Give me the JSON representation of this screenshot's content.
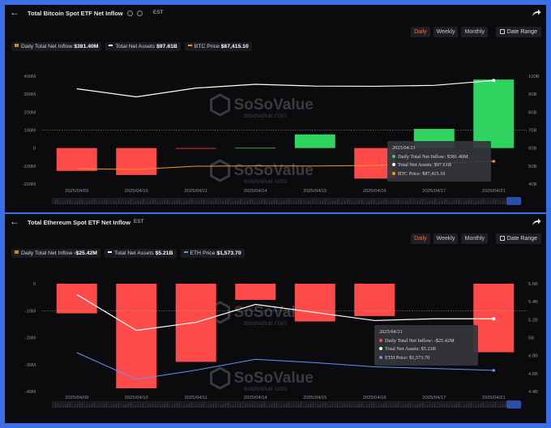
{
  "btc": {
    "title": "Total Bitcoin Spot ETF Net Inflow",
    "timezone": "EST",
    "timeframes": [
      "Daily",
      "Weekly",
      "Monthly"
    ],
    "active_timeframe": "Daily",
    "date_range_label": "Date Range",
    "legend": [
      {
        "label": "Daily Total Net Inflow",
        "value": "$381.40M",
        "color": "#f5a623"
      },
      {
        "label": "Total Net Assets",
        "value": "$97.61B",
        "color": "#ffffff"
      },
      {
        "label": "BTC Price",
        "value": "$87,415.10",
        "color": "#f7931a"
      }
    ],
    "tooltip": {
      "date": "2025/04/21",
      "lines": [
        {
          "text": "Daily Total Net Inflow: $381.40M",
          "color": "#2fd45e"
        },
        {
          "text": "Total Net Assets: $97.61B",
          "color": "#ffffff"
        },
        {
          "text": "BTC Price: $87,415.10",
          "color": "#f7931a"
        }
      ]
    },
    "watermark": {
      "brand": "SoSoValue",
      "url": "sosovalue.com"
    }
  },
  "eth": {
    "title": "Total Ethereum Spot ETF Net Inflow",
    "timezone": "EST",
    "timeframes": [
      "Daily",
      "Weekly",
      "Monthly"
    ],
    "active_timeframe": "Daily",
    "date_range_label": "Date Range",
    "legend": [
      {
        "label": "Daily Total Net Inflow",
        "value": "-$25.42M",
        "color": "#f5a623"
      },
      {
        "label": "Total Net Assets",
        "value": "$5.21B",
        "color": "#ffffff"
      },
      {
        "label": "ETH Price",
        "value": "$1,573.70",
        "color": "#6b8cff"
      }
    ],
    "tooltip": {
      "date": "2025/04/21",
      "lines": [
        {
          "text": "Daily Total Net Inflow: -$25.42M",
          "color": "#ff4a4a"
        },
        {
          "text": "Total Net Assets: $5.21B",
          "color": "#ffffff"
        },
        {
          "text": "ETH Price: $1,573.70",
          "color": "#6b8cff"
        }
      ]
    },
    "watermark": {
      "brand": "SoSoValue",
      "url": "sosovalue.com"
    }
  },
  "chart_data": [
    {
      "type": "bar",
      "title": "Total Bitcoin Spot ETF Net Inflow",
      "categories": [
        "2025/04/09",
        "2025/04/10",
        "2025/04/11",
        "2025/04/14",
        "2025/04/15",
        "2025/04/16",
        "2025/04/17",
        "2025/04/21"
      ],
      "series": [
        {
          "name": "Daily Total Net Inflow",
          "type": "bar",
          "axis": "left",
          "values": [
            -127,
            -150,
            -2,
            1.5,
            76,
            -170,
            107,
            381.4
          ]
        },
        {
          "name": "Total Net Assets",
          "type": "line",
          "axis": "right",
          "values": [
            93.0,
            88.5,
            93.4,
            95.5,
            94.5,
            94.4,
            94.9,
            97.61
          ]
        },
        {
          "name": "BTC Price",
          "type": "line",
          "axis": "hidden",
          "values": [
            77000,
            76000,
            80500,
            81000,
            80900,
            81600,
            84900,
            87415.1
          ]
        }
      ],
      "y_left": {
        "ticks": [
          "400M",
          "300M",
          "200M",
          "100M",
          "0",
          "-100M",
          "-200M"
        ],
        "range": [
          -200,
          400
        ]
      },
      "y_right": {
        "ticks": [
          "100B",
          "90B",
          "80B",
          "70B",
          "60B",
          "50B",
          "40B"
        ],
        "range": [
          40,
          100
        ]
      },
      "colors": {
        "positive": "#2fd45e",
        "negative": "#ff4a4a",
        "assets": "#ffffff",
        "price": "#f7931a"
      },
      "legend": "top-left",
      "grid": false
    },
    {
      "type": "bar",
      "title": "Total Ethereum Spot ETF Net Inflow",
      "categories": [
        "2025/04/09",
        "2025/04/10",
        "2025/04/11",
        "2025/04/14",
        "2025/04/15",
        "2025/04/16",
        "2025/04/17",
        "2025/04/21"
      ],
      "series": [
        {
          "name": "Daily Total Net Inflow",
          "type": "bar",
          "axis": "left",
          "values": [
            -11,
            -38.8,
            -29,
            -6,
            -14,
            -12,
            0,
            -25.42
          ]
        },
        {
          "name": "Total Net Assets",
          "type": "line",
          "axis": "right",
          "values": [
            5.48,
            5.08,
            5.17,
            5.37,
            5.28,
            5.19,
            5.21,
            5.21
          ]
        },
        {
          "name": "ETH Price",
          "type": "line",
          "axis": "hidden",
          "values": [
            1680,
            1520,
            1575,
            1640,
            1620,
            1595,
            1585,
            1573.7
          ]
        }
      ],
      "y_left": {
        "ticks": [
          "0",
          "-10M",
          "-20M",
          "-30M",
          "-40M"
        ],
        "range": [
          -40,
          0
        ]
      },
      "y_right": {
        "ticks": [
          "5.6B",
          "5.4B",
          "5.2B",
          "5B",
          "4.8B",
          "4.6B",
          "4.4B"
        ],
        "range": [
          4.4,
          5.6
        ]
      },
      "colors": {
        "positive": "#2fd45e",
        "negative": "#ff4a4a",
        "assets": "#ffffff",
        "price": "#6b8cff"
      },
      "legend": "top-left",
      "grid": false
    }
  ]
}
